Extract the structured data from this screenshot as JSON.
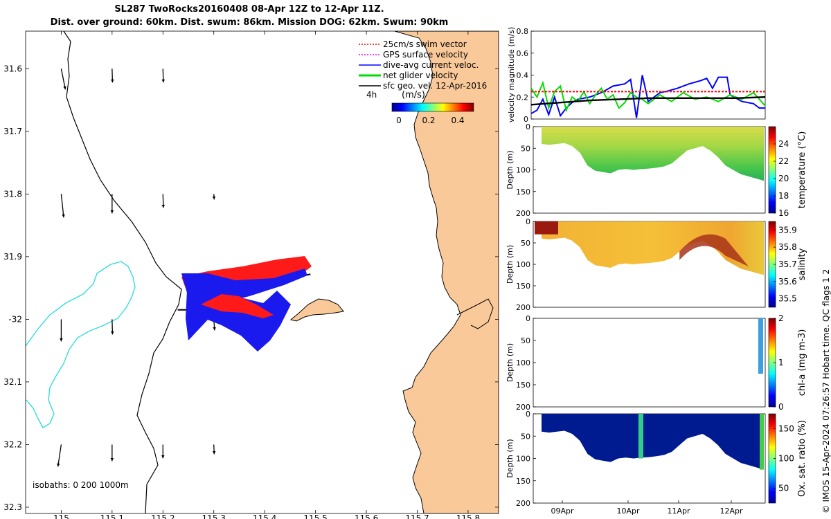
{
  "title_line1": "SL287 TwoRocks20160408 08-Apr 12Z to 12-Apr 11Z.",
  "title_line2": "Dist. over ground: 60km. Dist. swum: 86km. Mission DOG: 62km. Swum: 90km",
  "credit": "© IMOS 15-Apr-2024 07:26:57 Hobart time. QC flags 1  2",
  "colors": {
    "land": "#f9c99a",
    "swim_vector": "#ff0000",
    "gps_velocity": "#ff00ff",
    "current": "#0000ff",
    "glider_velocity": "#00dd00",
    "geo_velocity": "#000000",
    "island_contour": "#33dddd",
    "temperature_line": "#00dd00",
    "velocity_gps": "#ff0000"
  },
  "chart_data": [
    {
      "type": "map",
      "name": "glider-track-map",
      "xlim": [
        114.93,
        115.86
      ],
      "ylim_south": [
        31.54,
        32.31
      ],
      "xticks": [
        115,
        115.1,
        115.2,
        115.3,
        115.4,
        115.5,
        115.6,
        115.7,
        115.8
      ],
      "xtick_labels": [
        "115",
        "115.1",
        "115.2",
        "115.3",
        "115.4",
        "115.5",
        "115.6",
        "115.7",
        "115.8"
      ],
      "yticks": [
        31.6,
        31.7,
        31.8,
        31.9,
        32.0,
        32.1,
        32.2,
        32.3
      ],
      "ytick_labels": [
        "31.6",
        "31.7",
        "31.8",
        "31.9",
        "-32",
        "32.1",
        "32.2",
        "32.3"
      ],
      "legend": {
        "position": "top-right",
        "entries": [
          "25cm/s swim vector",
          "GPS surface velocity",
          "dive-avg current veloc.",
          "net glider velocity",
          "sfc geo. vel. 12-Apr-2016"
        ]
      },
      "interval_label": "4h",
      "colorbar": {
        "label": "(m/s)",
        "range": [
          0,
          0.5
        ],
        "ticks": [
          "0",
          "0.2",
          "0.4"
        ]
      },
      "isobath_label": "isobaths: 0   200  1000m",
      "track": [
        [
          115.229,
          31.985
        ],
        [
          115.26,
          31.985
        ],
        [
          115.3,
          31.995
        ],
        [
          115.34,
          32.012
        ],
        [
          115.38,
          32.02
        ],
        [
          115.405,
          32.02
        ],
        [
          115.42,
          32.008
        ],
        [
          115.38,
          31.99
        ],
        [
          115.33,
          31.978
        ],
        [
          115.29,
          31.975
        ],
        [
          115.27,
          31.98
        ],
        [
          115.3,
          31.96
        ],
        [
          115.34,
          31.955
        ],
        [
          115.4,
          31.945
        ],
        [
          115.45,
          31.935
        ],
        [
          115.49,
          31.928
        ]
      ],
      "geo_vectors": [
        {
          "lon": 115.0,
          "lat": 31.6,
          "u": 0.5,
          "v": -1.5
        },
        {
          "lon": 115.1,
          "lat": 31.6,
          "u": 0.05,
          "v": -1.0
        },
        {
          "lon": 115.2,
          "lat": 31.6,
          "u": 0.05,
          "v": -1.0
        },
        {
          "lon": 115.0,
          "lat": 31.8,
          "u": 0.3,
          "v": -1.7
        },
        {
          "lon": 115.1,
          "lat": 31.8,
          "u": 0.0,
          "v": -1.4
        },
        {
          "lon": 115.2,
          "lat": 31.8,
          "u": 0.05,
          "v": -1.0
        },
        {
          "lon": 115.3,
          "lat": 31.8,
          "u": 0.05,
          "v": -0.4
        },
        {
          "lon": 115.0,
          "lat": 32.0,
          "u": 0.0,
          "v": -1.6
        },
        {
          "lon": 115.1,
          "lat": 32.0,
          "u": 0.05,
          "v": -1.1
        },
        {
          "lon": 115.3,
          "lat": 32.0,
          "u": 0.1,
          "v": -0.8
        },
        {
          "lon": 115.0,
          "lat": 32.2,
          "u": -0.4,
          "v": -1.6
        },
        {
          "lon": 115.1,
          "lat": 32.2,
          "u": 0.0,
          "v": -1.2
        },
        {
          "lon": 115.2,
          "lat": 32.2,
          "u": 0.0,
          "v": -1.0
        },
        {
          "lon": 115.3,
          "lat": 32.2,
          "u": 0.05,
          "v": -0.7
        }
      ]
    },
    {
      "type": "line",
      "name": "velocity-magnitude",
      "ylabel": "velocity magnitude (m/s)",
      "ylim": [
        0,
        0.8
      ],
      "yticks": [
        0,
        0.2,
        0.4,
        0.6,
        0.8
      ],
      "x_days": [
        0,
        4
      ],
      "series": [
        {
          "name": "dive-avg current veloc.",
          "color": "#0000ff",
          "x": [
            0.0,
            0.1,
            0.2,
            0.3,
            0.4,
            0.5,
            0.6,
            0.7,
            0.8,
            1.0,
            1.2,
            1.4,
            1.6,
            1.7,
            1.8,
            1.9,
            2.0,
            2.1,
            2.2,
            2.3,
            2.5,
            2.7,
            2.9,
            3.0,
            3.1,
            3.2,
            3.35,
            3.4,
            3.6,
            3.8,
            3.9,
            4.0
          ],
          "y": [
            0.05,
            0.08,
            0.18,
            0.04,
            0.2,
            0.03,
            0.1,
            0.15,
            0.18,
            0.2,
            0.24,
            0.3,
            0.32,
            0.36,
            0.01,
            0.4,
            0.16,
            0.2,
            0.24,
            0.25,
            0.28,
            0.32,
            0.35,
            0.37,
            0.28,
            0.38,
            0.38,
            0.22,
            0.16,
            0.14,
            0.1,
            0.1
          ]
        },
        {
          "name": "net glider velocity",
          "color": "#00dd00",
          "x": [
            0.0,
            0.1,
            0.2,
            0.3,
            0.4,
            0.5,
            0.6,
            0.7,
            0.8,
            0.9,
            1.0,
            1.1,
            1.2,
            1.3,
            1.4,
            1.5,
            1.6,
            1.7,
            1.8,
            1.9,
            2.0,
            2.2,
            2.4,
            2.6,
            2.8,
            3.0,
            3.2,
            3.4,
            3.6,
            3.8,
            4.0
          ],
          "y": [
            0.28,
            0.2,
            0.33,
            0.1,
            0.25,
            0.3,
            0.08,
            0.2,
            0.16,
            0.25,
            0.14,
            0.22,
            0.28,
            0.18,
            0.22,
            0.1,
            0.15,
            0.24,
            0.2,
            0.18,
            0.14,
            0.22,
            0.16,
            0.24,
            0.18,
            0.2,
            0.16,
            0.22,
            0.18,
            0.24,
            0.12
          ]
        },
        {
          "name": "GPS surface velocity",
          "color": "#ff0000",
          "x": [
            0,
            4
          ],
          "y": [
            0.25,
            0.25
          ]
        },
        {
          "name": "sfc geo. vel.",
          "color": "#000000",
          "x": [
            0.0,
            0.5,
            1.0,
            1.5,
            2.0,
            2.5,
            3.0,
            3.5,
            4.0
          ],
          "y": [
            0.13,
            0.15,
            0.17,
            0.18,
            0.19,
            0.19,
            0.19,
            0.19,
            0.2
          ]
        }
      ]
    },
    {
      "type": "heatmap",
      "name": "temperature-section",
      "ylabel": "Depth (m)",
      "ylim": [
        200,
        0
      ],
      "yticks": [
        0,
        50,
        100,
        150,
        200
      ],
      "colorbar": {
        "label": "temperature (°C)",
        "range": [
          16,
          26
        ],
        "ticks": [
          "16",
          "18",
          "20",
          "22",
          "24"
        ]
      },
      "bottom_depth_profile": [
        40,
        42,
        40,
        38,
        45,
        60,
        90,
        102,
        105,
        108,
        100,
        98,
        100,
        98,
        97,
        95,
        92,
        85,
        70,
        55,
        50,
        45,
        55,
        70,
        90,
        100,
        110,
        115,
        120,
        125
      ]
    },
    {
      "type": "heatmap",
      "name": "salinity-section",
      "ylabel": "Depth (m)",
      "ylim": [
        200,
        0
      ],
      "yticks": [
        0,
        50,
        100,
        150,
        200
      ],
      "colorbar": {
        "label": "salinity",
        "range": [
          35.45,
          35.95
        ],
        "ticks": [
          "35.5",
          "35.6",
          "35.7",
          "35.8",
          "35.9"
        ]
      },
      "bottom_depth_profile": [
        40,
        42,
        40,
        38,
        45,
        60,
        90,
        102,
        105,
        108,
        100,
        98,
        100,
        98,
        97,
        95,
        92,
        85,
        70,
        55,
        50,
        45,
        55,
        70,
        90,
        100,
        110,
        115,
        120,
        125
      ]
    },
    {
      "type": "heatmap",
      "name": "chlorophyll-section",
      "ylabel": "Depth (m)",
      "ylim": [
        200,
        0
      ],
      "yticks": [
        0,
        50,
        100,
        150,
        200
      ],
      "colorbar": {
        "label": "chl-a (mg m-3)",
        "range": [
          0,
          2
        ],
        "ticks": [
          "0",
          "1",
          "2"
        ]
      },
      "profile_depth": 125
    },
    {
      "type": "heatmap",
      "name": "oxygen-section",
      "ylabel": "Depth (m)",
      "ylim": [
        200,
        0
      ],
      "yticks": [
        0,
        50,
        100,
        150,
        200
      ],
      "xticks": [
        "09Apr",
        "10Apr",
        "11Apr",
        "12Apr"
      ],
      "colorbar": {
        "label": "Ox. sat. ratio (%)",
        "range": [
          25,
          175
        ],
        "ticks": [
          "50",
          "100",
          "150"
        ]
      },
      "bottom_depth_profile": [
        40,
        42,
        40,
        38,
        45,
        60,
        90,
        102,
        105,
        108,
        100,
        98,
        100,
        98,
        97,
        95,
        92,
        85,
        70,
        55,
        50,
        45,
        55,
        70,
        90,
        100,
        110,
        115,
        120,
        125
      ]
    }
  ]
}
